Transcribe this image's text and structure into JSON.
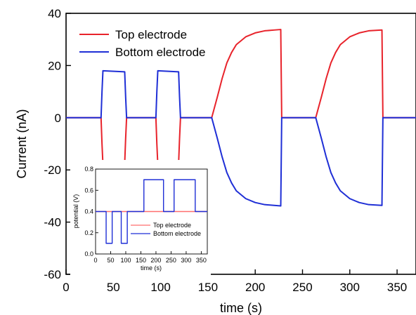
{
  "chart_data": [
    {
      "type": "line",
      "title": "",
      "xlabel": "time (s)",
      "ylabel": "Current (nA)",
      "xlim": [
        0,
        370
      ],
      "ylim": [
        -60,
        40
      ],
      "xticks": [
        "0",
        "50",
        "100",
        "150",
        "200",
        "250",
        "300",
        "350"
      ],
      "yticks": [
        "-60",
        "-40",
        "-20",
        "0",
        "20",
        "40"
      ],
      "legend_position": "top-left",
      "series": [
        {
          "name": "Top electrode",
          "color": "#e8232b",
          "points": [
            [
              0,
              0
            ],
            [
              37,
              0
            ],
            [
              38,
              -10
            ],
            [
              39,
              -18
            ],
            [
              62,
              -17.5
            ],
            [
              63,
              -8
            ],
            [
              64,
              0
            ],
            [
              95,
              0
            ],
            [
              96,
              -10
            ],
            [
              97,
              -18
            ],
            [
              119,
              -17.5
            ],
            [
              120,
              -8
            ],
            [
              121,
              0
            ],
            [
              154,
              0
            ],
            [
              160,
              8
            ],
            [
              165,
              15
            ],
            [
              170,
              21
            ],
            [
              175,
              25
            ],
            [
              180,
              28
            ],
            [
              190,
              31
            ],
            [
              200,
              32.5
            ],
            [
              210,
              33.3
            ],
            [
              220,
              33.6
            ],
            [
              227,
              33.8
            ],
            [
              228,
              0
            ],
            [
              260,
              0
            ],
            [
              264,
              0
            ],
            [
              270,
              8
            ],
            [
              275,
              15
            ],
            [
              280,
              21
            ],
            [
              285,
              25
            ],
            [
              290,
              28
            ],
            [
              300,
              31
            ],
            [
              310,
              32.5
            ],
            [
              320,
              33.3
            ],
            [
              334,
              33.6
            ],
            [
              335,
              0
            ],
            [
              370,
              0
            ]
          ]
        },
        {
          "name": "Bottom electrode",
          "color": "#1f2fd6",
          "points": [
            [
              0,
              0
            ],
            [
              37,
              0
            ],
            [
              38,
              10
            ],
            [
              39,
              18
            ],
            [
              62,
              17.6
            ],
            [
              63,
              8
            ],
            [
              64,
              0
            ],
            [
              95,
              0
            ],
            [
              96,
              10
            ],
            [
              97,
              18
            ],
            [
              119,
              17.6
            ],
            [
              120,
              8
            ],
            [
              121,
              0
            ],
            [
              154,
              0
            ],
            [
              160,
              -8
            ],
            [
              165,
              -15
            ],
            [
              170,
              -21
            ],
            [
              175,
              -25
            ],
            [
              180,
              -28
            ],
            [
              190,
              -31
            ],
            [
              200,
              -32.5
            ],
            [
              210,
              -33.3
            ],
            [
              220,
              -33.6
            ],
            [
              227,
              -33.8
            ],
            [
              228,
              0
            ],
            [
              260,
              0
            ],
            [
              264,
              0
            ],
            [
              270,
              -8
            ],
            [
              275,
              -15
            ],
            [
              280,
              -21
            ],
            [
              285,
              -25
            ],
            [
              290,
              -28
            ],
            [
              300,
              -31
            ],
            [
              310,
              -32.5
            ],
            [
              320,
              -33.3
            ],
            [
              334,
              -33.6
            ],
            [
              335,
              0
            ],
            [
              370,
              0
            ]
          ]
        }
      ]
    },
    {
      "type": "line",
      "title": "",
      "xlabel": "time (s)",
      "ylabel": "potential (V)",
      "xlim": [
        0,
        370
      ],
      "ylim": [
        0.0,
        0.8
      ],
      "xticks": [
        "0",
        "50",
        "100",
        "150",
        "200",
        "250",
        "300",
        "350"
      ],
      "yticks": [
        "0.0",
        "0.2",
        "0.4",
        "0.6",
        "0.8"
      ],
      "legend_position": "center-right",
      "series": [
        {
          "name": "Top electrode",
          "color": "#ff6e6e",
          "points": [
            [
              0,
              0.4
            ],
            [
              370,
              0.4
            ]
          ]
        },
        {
          "name": "Bottom electrode",
          "color": "#1f2fd6",
          "points": [
            [
              0,
              0.4
            ],
            [
              35,
              0.4
            ],
            [
              35,
              0.1
            ],
            [
              55,
              0.1
            ],
            [
              55,
              0.4
            ],
            [
              85,
              0.4
            ],
            [
              85,
              0.1
            ],
            [
              105,
              0.1
            ],
            [
              105,
              0.4
            ],
            [
              160,
              0.4
            ],
            [
              160,
              0.7
            ],
            [
              225,
              0.7
            ],
            [
              225,
              0.4
            ],
            [
              260,
              0.4
            ],
            [
              260,
              0.7
            ],
            [
              330,
              0.7
            ],
            [
              330,
              0.4
            ],
            [
              370,
              0.4
            ]
          ]
        }
      ]
    }
  ]
}
